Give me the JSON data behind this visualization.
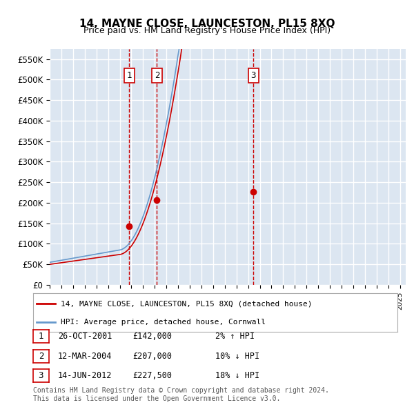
{
  "title": "14, MAYNE CLOSE, LAUNCESTON, PL15 8XQ",
  "subtitle": "Price paid vs. HM Land Registry's House Price Index (HPI)",
  "ylabel": "",
  "ylim": [
    0,
    575000
  ],
  "yticks": [
    0,
    50000,
    100000,
    150000,
    200000,
    250000,
    300000,
    350000,
    400000,
    450000,
    500000,
    550000
  ],
  "ytick_labels": [
    "£0",
    "£50K",
    "£100K",
    "£150K",
    "£200K",
    "£250K",
    "£300K",
    "£350K",
    "£400K",
    "£450K",
    "£500K",
    "£550K"
  ],
  "background_color": "#ffffff",
  "plot_bg_color": "#dce6f1",
  "grid_color": "#ffffff",
  "transaction_color": "#cc0000",
  "hpi_color": "#6699cc",
  "transactions": [
    {
      "date": 2001.82,
      "price": 142000,
      "label": "1"
    },
    {
      "date": 2004.19,
      "price": 207000,
      "label": "2"
    },
    {
      "date": 2012.45,
      "price": 227500,
      "label": "3"
    }
  ],
  "legend_entries": [
    {
      "label": "14, MAYNE CLOSE, LAUNCESTON, PL15 8XQ (detached house)",
      "color": "#cc0000"
    },
    {
      "label": "HPI: Average price, detached house, Cornwall",
      "color": "#6699cc"
    }
  ],
  "table_rows": [
    {
      "num": "1",
      "date": "26-OCT-2001",
      "price": "£142,000",
      "hpi": "2% ↑ HPI"
    },
    {
      "num": "2",
      "date": "12-MAR-2004",
      "price": "£207,000",
      "hpi": "10% ↓ HPI"
    },
    {
      "num": "3",
      "date": "14-JUN-2012",
      "price": "£227,500",
      "hpi": "18% ↓ HPI"
    }
  ],
  "footnote": "Contains HM Land Registry data © Crown copyright and database right 2024.\nThis data is licensed under the Open Government Licence v3.0.",
  "xmin": 1995.0,
  "xmax": 2025.5
}
